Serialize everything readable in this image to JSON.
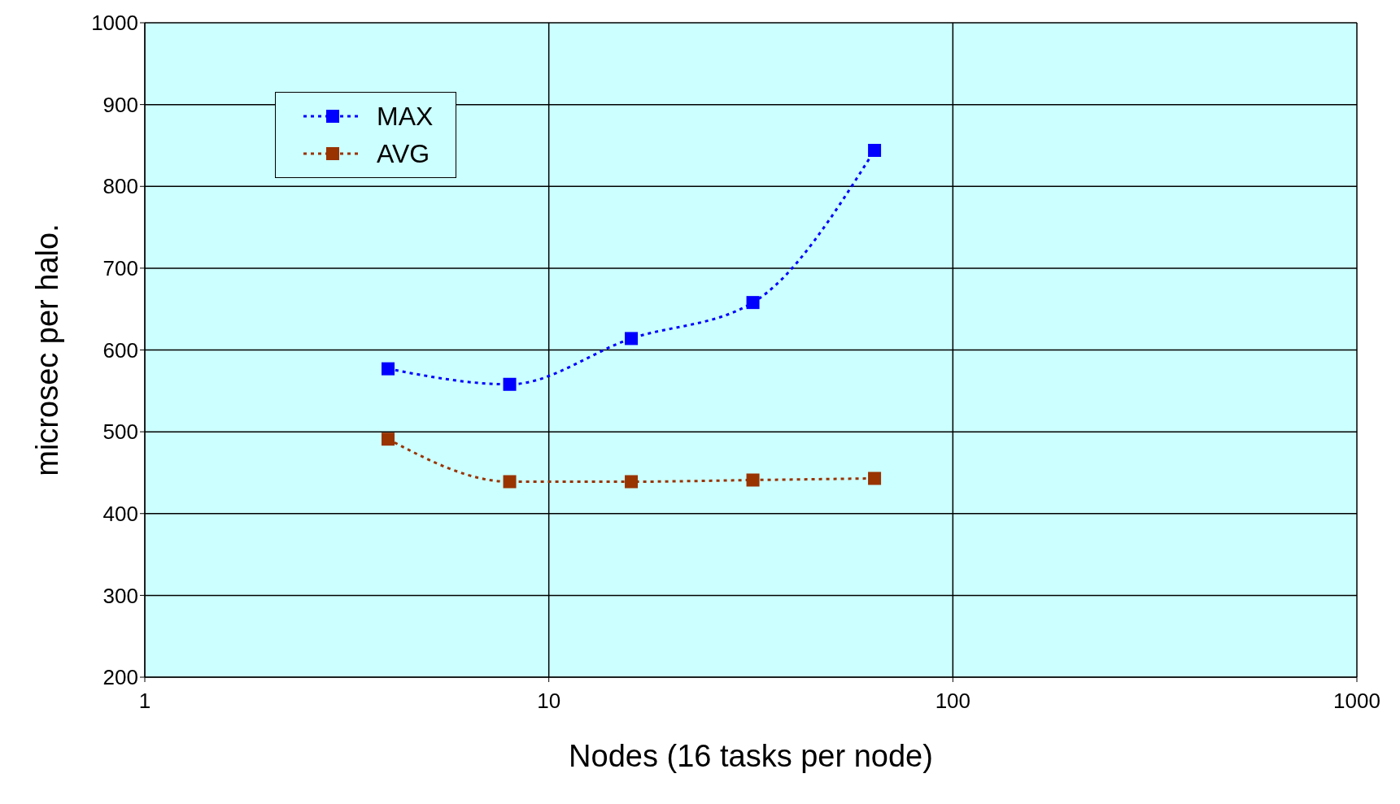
{
  "chart_data": {
    "type": "line",
    "xlabel": "Nodes (16 tasks per node)",
    "ylabel": "microsec per halo.",
    "x": [
      4,
      8,
      16,
      32,
      64
    ],
    "series": [
      {
        "name": "MAX",
        "color": "#0000ff",
        "values": [
          577,
          558,
          614,
          658,
          844
        ]
      },
      {
        "name": "AVG",
        "color": "#993300",
        "values": [
          491,
          439,
          439,
          441,
          443
        ]
      }
    ],
    "log": "x",
    "xlim": [
      1,
      1000
    ],
    "xticks": [
      1,
      10,
      100,
      1000
    ],
    "ylim": [
      200,
      1000
    ],
    "yticks": [
      200,
      300,
      400,
      500,
      600,
      700,
      800,
      900,
      1000
    ],
    "grid": true,
    "legend": "top left",
    "marker": "square",
    "line_style": "dotted"
  }
}
